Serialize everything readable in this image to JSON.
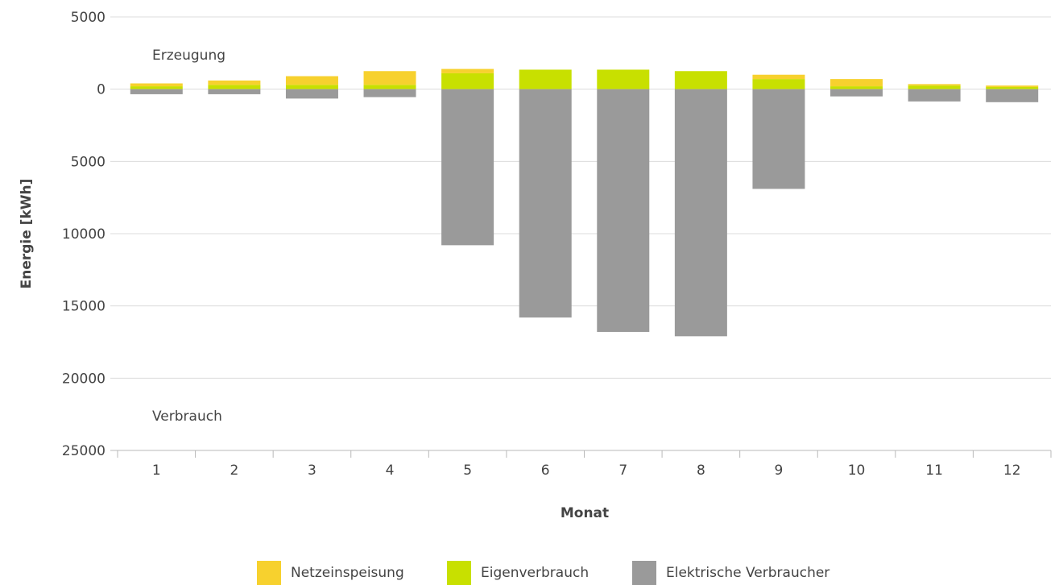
{
  "chart_data": {
    "type": "bar",
    "stacked": true,
    "xlabel": "Monat",
    "ylabel": "Energie [kWh]",
    "categories": [
      "1",
      "2",
      "3",
      "4",
      "5",
      "6",
      "7",
      "8",
      "9",
      "10",
      "11",
      "12"
    ],
    "y_tick_values": [
      5000,
      0,
      -5000,
      -10000,
      -15000,
      -20000,
      -25000
    ],
    "y_tick_labels": [
      "5000",
      "0",
      "5000",
      "10000",
      "15000",
      "20000",
      "25000"
    ],
    "ylim": [
      -25000,
      5000
    ],
    "grid": true,
    "annotations": {
      "top": "Erzeugung",
      "bottom": "Verbrauch"
    },
    "legend_position": "bottom",
    "series": [
      {
        "name": "Eigenverbrauch",
        "color": "#c8e000",
        "values": [
          200,
          300,
          300,
          300,
          1100,
          1350,
          1350,
          1250,
          700,
          200,
          250,
          150
        ]
      },
      {
        "name": "Netzeinspeisung",
        "color": "#f7d12e",
        "values": [
          200,
          300,
          600,
          950,
          300,
          0,
          0,
          0,
          300,
          500,
          100,
          100
        ]
      },
      {
        "name": "Elektrische Verbraucher",
        "color": "#9a9a9a",
        "values": [
          -350,
          -350,
          -650,
          -550,
          -10800,
          -15800,
          -16800,
          -17100,
          -6900,
          -500,
          -850,
          -900
        ]
      }
    ]
  }
}
